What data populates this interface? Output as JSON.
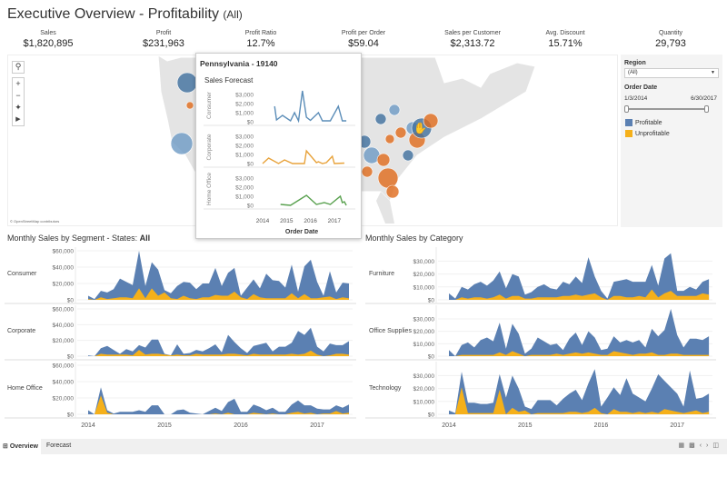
{
  "header": {
    "title": "Executive Overview - Profitability",
    "filter": "(All)"
  },
  "kpis": [
    {
      "label": "Sales",
      "value": "$1,820,895"
    },
    {
      "label": "Profit",
      "value": "$231,963"
    },
    {
      "label": "Profit Ratio",
      "value": "12.7%"
    },
    {
      "label": "Profit per Order",
      "value": "$59.04"
    },
    {
      "label": "Sales per Customer",
      "value": "$2,313.72"
    },
    {
      "label": "Avg. Discount",
      "value": "15.71%"
    },
    {
      "label": "Quantity",
      "value": "29,793"
    }
  ],
  "map": {
    "attribution": "© OpenStreetMap contributors",
    "controls": [
      "search-icon",
      "zoom-in-icon",
      "zoom-out-icon",
      "pin-icon",
      "play-icon"
    ]
  },
  "filters": {
    "region_label": "Region",
    "region_value": "(All)",
    "date_label": "Order Date",
    "date_start": "1/3/2014",
    "date_end": "6/30/2017",
    "legend": [
      {
        "label": "Profitable",
        "color": "#4e79a7"
      },
      {
        "label": "Unprofitable",
        "color": "#f2a900"
      }
    ]
  },
  "colors": {
    "profitable": "#5b80b2",
    "unprofitable": "#f5b01a"
  },
  "chart_data": [
    {
      "type": "area",
      "title": "Monthly Sales by Segment - States: ",
      "title_bold": "All",
      "start": "2014-01",
      "x_ticks": [
        "2014",
        "2015",
        "2016",
        "2017"
      ],
      "y_ticks": [
        "$0",
        "$20,000",
        "$40,000",
        "$60,000"
      ],
      "ylim": [
        0,
        60000
      ],
      "panels": [
        {
          "name": "Consumer",
          "series": [
            {
              "name": "Profitable",
              "values": [
                5000,
                1000,
                11000,
                9000,
                13000,
                26000,
                22000,
                18000,
                60000,
                17000,
                46000,
                37000,
                12000,
                8000,
                17000,
                22000,
                21000,
                13000,
                20000,
                20000,
                39000,
                17000,
                33000,
                39000,
                5000,
                15000,
                25000,
                14000,
                32000,
                24000,
                23000,
                15000,
                43000,
                10000,
                41000,
                49000,
                22000,
                5000,
                35000,
                9000,
                21000,
                20000
              ]
            },
            {
              "name": "Unprofitable",
              "values": [
                1000,
                0,
                3000,
                1000,
                2000,
                3000,
                3000,
                2000,
                14000,
                2000,
                14000,
                5000,
                9000,
                2000,
                1000,
                5000,
                2000,
                1000,
                3000,
                3000,
                6000,
                5000,
                5000,
                10000,
                3000,
                1000,
                7000,
                3000,
                2000,
                2000,
                2000,
                2000,
                8000,
                2000,
                7000,
                2000,
                2000,
                3000,
                4000,
                1000,
                3000,
                2000
              ]
            }
          ]
        },
        {
          "name": "Corporate",
          "series": [
            {
              "name": "Profitable",
              "values": [
                1000,
                0,
                10000,
                13000,
                8000,
                3000,
                9000,
                6000,
                14000,
                11000,
                21000,
                21000,
                3000,
                1000,
                15000,
                3000,
                4000,
                8000,
                6000,
                10000,
                15000,
                5000,
                27000,
                18000,
                10000,
                4000,
                13000,
                15000,
                17000,
                6000,
                12000,
                12000,
                17000,
                32000,
                27000,
                36000,
                12000,
                6000,
                16000,
                14000,
                14000,
                19000
              ]
            },
            {
              "name": "Unprofitable",
              "values": [
                0,
                0,
                3000,
                2000,
                2000,
                2000,
                2000,
                1000,
                8000,
                2000,
                3000,
                3000,
                2000,
                1000,
                2000,
                1000,
                1000,
                3000,
                2000,
                2000,
                2000,
                2000,
                3000,
                3000,
                2000,
                1000,
                3000,
                2000,
                2000,
                2000,
                2000,
                2000,
                3000,
                2000,
                3000,
                7000,
                2000,
                0,
                1000,
                3000,
                3000,
                2000
              ]
            }
          ]
        },
        {
          "name": "Home Office",
          "series": [
            {
              "name": "Profitable",
              "values": [
                5000,
                0,
                33000,
                5000,
                1000,
                3000,
                3000,
                3000,
                5000,
                3000,
                11000,
                11000,
                0,
                0,
                5000,
                6000,
                2000,
                1000,
                0,
                4000,
                8000,
                4000,
                15000,
                19000,
                3000,
                3000,
                12000,
                9000,
                5000,
                8000,
                3000,
                3000,
                12000,
                17000,
                11000,
                11000,
                7000,
                6000,
                6000,
                11000,
                8000,
                12000
              ]
            },
            {
              "name": "Unprofitable",
              "values": [
                0,
                0,
                23000,
                2000,
                0,
                0,
                0,
                0,
                0,
                0,
                0,
                0,
                0,
                0,
                0,
                0,
                0,
                0,
                0,
                0,
                1000,
                0,
                2000,
                0,
                0,
                0,
                2000,
                1000,
                0,
                1000,
                0,
                0,
                2000,
                3000,
                1000,
                2000,
                0,
                1000,
                1000,
                4000,
                1000,
                2000
              ]
            }
          ]
        }
      ]
    },
    {
      "type": "area",
      "title": "Monthly Sales by Category",
      "start": "2014-01",
      "x_ticks": [
        "2014",
        "2015",
        "2016",
        "2017"
      ],
      "y_ticks": [
        "$0",
        "$10,000",
        "$20,000",
        "$30,000"
      ],
      "ylim": [
        0,
        38000
      ],
      "panels": [
        {
          "name": "Furniture",
          "series": [
            {
              "name": "Profitable",
              "values": [
                5000,
                1000,
                10000,
                8000,
                12000,
                14000,
                11000,
                15000,
                22000,
                9000,
                20000,
                18000,
                4000,
                6000,
                10000,
                12000,
                9000,
                8000,
                14000,
                12000,
                18000,
                13000,
                33000,
                18000,
                7000,
                1000,
                14000,
                15000,
                16000,
                14000,
                14000,
                14000,
                27000,
                11000,
                32000,
                36000,
                7000,
                7000,
                10000,
                8000,
                14000,
                16000
              ]
            },
            {
              "name": "Unprofitable",
              "values": [
                0,
                0,
                2000,
                1000,
                2000,
                2000,
                1000,
                2000,
                4000,
                1000,
                3000,
                3000,
                1000,
                1000,
                2000,
                2000,
                2000,
                2000,
                3000,
                3000,
                4000,
                3000,
                4000,
                5000,
                2000,
                0,
                3000,
                3000,
                2000,
                2000,
                3000,
                2000,
                8000,
                2000,
                5000,
                7000,
                3000,
                3000,
                3000,
                3000,
                5000,
                4000
              ]
            }
          ]
        },
        {
          "name": "Office Supplies",
          "series": [
            {
              "name": "Profitable",
              "values": [
                5000,
                0,
                9000,
                11000,
                7000,
                13000,
                15000,
                12000,
                27000,
                6000,
                26000,
                18000,
                2000,
                6000,
                15000,
                12000,
                9000,
                10000,
                5000,
                14000,
                19000,
                9000,
                20000,
                15000,
                5000,
                6000,
                16000,
                11000,
                13000,
                11000,
                13000,
                7000,
                22000,
                16000,
                21000,
                38000,
                17000,
                7000,
                14000,
                14000,
                13000,
                16000
              ]
            },
            {
              "name": "Unprofitable",
              "values": [
                0,
                0,
                1000,
                1000,
                1000,
                1000,
                1000,
                1000,
                3000,
                1000,
                4000,
                2000,
                0,
                1000,
                1000,
                1000,
                1000,
                2000,
                1000,
                2000,
                3000,
                2000,
                3000,
                2000,
                1000,
                1000,
                4000,
                3000,
                2000,
                1000,
                2000,
                2000,
                3000,
                1000,
                1000,
                2000,
                2000,
                1000,
                1000,
                1000,
                1000,
                1000
              ]
            }
          ]
        },
        {
          "name": "Technology",
          "series": [
            {
              "name": "Profitable",
              "values": [
                3000,
                1000,
                33000,
                9000,
                9000,
                8000,
                8000,
                9000,
                31000,
                13000,
                30000,
                20000,
                6000,
                4000,
                11000,
                11000,
                11000,
                7000,
                12000,
                16000,
                19000,
                11000,
                24000,
                35000,
                6000,
                13000,
                21000,
                15000,
                28000,
                16000,
                13000,
                10000,
                20000,
                31000,
                26000,
                21000,
                16000,
                6000,
                34000,
                12000,
                13000,
                16000
              ]
            },
            {
              "name": "Unprofitable",
              "values": [
                0,
                0,
                21000,
                1000,
                1000,
                1000,
                1000,
                1000,
                19000,
                0,
                5000,
                2000,
                3000,
                0,
                1000,
                1000,
                1000,
                1000,
                1000,
                2000,
                2000,
                1000,
                2000,
                5000,
                1000,
                0,
                4000,
                2000,
                2000,
                1000,
                2000,
                1000,
                2000,
                1000,
                4000,
                3000,
                2000,
                1000,
                2000,
                3000,
                1000,
                2000
              ]
            }
          ]
        }
      ]
    }
  ],
  "tooltip": {
    "title": "Pennsylvania - 19140",
    "subtitle": "Sales Forecast",
    "xlabel": "Order Date",
    "x_ticks": [
      "2014",
      "2015",
      "2016",
      "2017"
    ],
    "y_ticks": [
      "$0",
      "$1,000",
      "$2,000",
      "$3,000"
    ],
    "ylim": [
      0,
      3500
    ],
    "series": [
      {
        "name": "Consumer",
        "color": "#5b8db8",
        "points": [
          [
            "2014-07",
            1700
          ],
          [
            "2014-08",
            200
          ],
          [
            "2014-11",
            700
          ],
          [
            "2015-03",
            100
          ],
          [
            "2015-05",
            1000
          ],
          [
            "2015-07",
            100
          ],
          [
            "2015-09",
            3400
          ],
          [
            "2015-11",
            500
          ],
          [
            "2016-01",
            150
          ],
          [
            "2016-05",
            1000
          ],
          [
            "2016-07",
            100
          ],
          [
            "2016-11",
            100
          ],
          [
            "2017-03",
            1700
          ],
          [
            "2017-05",
            100
          ],
          [
            "2017-07",
            100
          ]
        ]
      },
      {
        "name": "Corporate",
        "color": "#e8a23a",
        "points": [
          [
            "2014-01",
            0
          ],
          [
            "2014-04",
            600
          ],
          [
            "2014-09",
            0
          ],
          [
            "2014-12",
            400
          ],
          [
            "2015-04",
            0
          ],
          [
            "2015-10",
            0
          ],
          [
            "2015-11",
            1400
          ],
          [
            "2016-04",
            100
          ],
          [
            "2016-05",
            200
          ],
          [
            "2016-07",
            0
          ],
          [
            "2016-09",
            100
          ],
          [
            "2016-12",
            800
          ],
          [
            "2017-01",
            0
          ],
          [
            "2017-06",
            50
          ]
        ]
      },
      {
        "name": "Home Office",
        "color": "#59a14f",
        "points": [
          [
            "2014-10",
            100
          ],
          [
            "2015-03",
            0
          ],
          [
            "2015-11",
            1100
          ],
          [
            "2016-04",
            100
          ],
          [
            "2016-08",
            300
          ],
          [
            "2016-11",
            100
          ],
          [
            "2017-04",
            1000
          ],
          [
            "2017-05",
            300
          ],
          [
            "2017-06",
            400
          ],
          [
            "2017-07",
            0
          ]
        ]
      }
    ]
  },
  "tabs": [
    {
      "label": "Overview",
      "active": true
    },
    {
      "label": "Forecast",
      "active": false
    }
  ]
}
